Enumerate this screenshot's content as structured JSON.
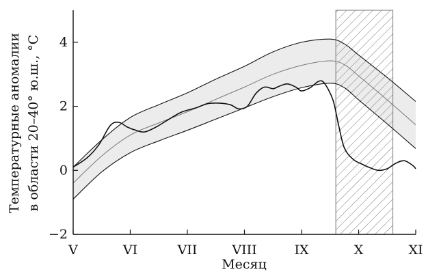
{
  "chart_data": {
    "type": "line",
    "xlabel": "Месяц",
    "ylabel_lines": [
      "Температурные аномалии",
      "в области 20–40° ю.ш., °С"
    ],
    "xlim": [
      0,
      6
    ],
    "ylim": [
      -2,
      5
    ],
    "x_ticks": [
      {
        "value": 0,
        "label": "V"
      },
      {
        "value": 1,
        "label": "VI"
      },
      {
        "value": 2,
        "label": "VII"
      },
      {
        "value": 3,
        "label": "VIII"
      },
      {
        "value": 4,
        "label": "IX"
      },
      {
        "value": 5,
        "label": "X"
      },
      {
        "value": 6,
        "label": "XI"
      }
    ],
    "y_ticks": [
      {
        "value": -2,
        "label": "−2"
      },
      {
        "value": 0,
        "label": "0"
      },
      {
        "value": 2,
        "label": "2"
      },
      {
        "value": 4,
        "label": "4"
      }
    ],
    "hatched_region": {
      "x_start": 4.6,
      "x_end": 5.6
    },
    "band": {
      "upper": [
        [
          0,
          0.1
        ],
        [
          0.5,
          0.95
        ],
        [
          1,
          1.65
        ],
        [
          1.5,
          2.05
        ],
        [
          2,
          2.42
        ],
        [
          2.5,
          2.85
        ],
        [
          3,
          3.25
        ],
        [
          3.5,
          3.7
        ],
        [
          4,
          4.0
        ],
        [
          4.5,
          4.1
        ],
        [
          4.75,
          3.95
        ],
        [
          5,
          3.6
        ],
        [
          5.5,
          2.9
        ],
        [
          6,
          2.15
        ]
      ],
      "lower": [
        [
          0,
          -0.9
        ],
        [
          0.5,
          -0.05
        ],
        [
          1,
          0.55
        ],
        [
          1.5,
          0.92
        ],
        [
          2,
          1.25
        ],
        [
          2.5,
          1.6
        ],
        [
          3,
          1.95
        ],
        [
          3.5,
          2.3
        ],
        [
          4,
          2.58
        ],
        [
          4.5,
          2.72
        ],
        [
          4.75,
          2.58
        ],
        [
          5,
          2.2
        ],
        [
          5.5,
          1.45
        ],
        [
          6,
          0.68
        ]
      ]
    },
    "series": [
      {
        "color": "#777777",
        "points": [
          [
            0,
            -0.4
          ],
          [
            0.5,
            0.45
          ],
          [
            1,
            1.1
          ],
          [
            1.5,
            1.48
          ],
          [
            2,
            1.83
          ],
          [
            2.5,
            2.22
          ],
          [
            3,
            2.6
          ],
          [
            3.5,
            3.0
          ],
          [
            4,
            3.28
          ],
          [
            4.5,
            3.42
          ],
          [
            4.75,
            3.3
          ],
          [
            5,
            2.95
          ],
          [
            5.5,
            2.2
          ],
          [
            6,
            1.42
          ]
        ]
      },
      {
        "color": "#111111",
        "points": [
          [
            0,
            0.1
          ],
          [
            0.25,
            0.4
          ],
          [
            0.45,
            0.8
          ],
          [
            0.65,
            1.4
          ],
          [
            0.8,
            1.5
          ],
          [
            0.95,
            1.35
          ],
          [
            1.1,
            1.25
          ],
          [
            1.25,
            1.2
          ],
          [
            1.45,
            1.35
          ],
          [
            1.7,
            1.62
          ],
          [
            1.9,
            1.82
          ],
          [
            2.15,
            1.95
          ],
          [
            2.35,
            2.08
          ],
          [
            2.55,
            2.1
          ],
          [
            2.75,
            2.05
          ],
          [
            2.9,
            1.92
          ],
          [
            3.05,
            2.0
          ],
          [
            3.2,
            2.4
          ],
          [
            3.35,
            2.6
          ],
          [
            3.5,
            2.55
          ],
          [
            3.6,
            2.62
          ],
          [
            3.75,
            2.7
          ],
          [
            3.9,
            2.6
          ],
          [
            4.0,
            2.48
          ],
          [
            4.15,
            2.58
          ],
          [
            4.3,
            2.78
          ],
          [
            4.4,
            2.72
          ],
          [
            4.55,
            2.2
          ],
          [
            4.65,
            1.4
          ],
          [
            4.75,
            0.7
          ],
          [
            4.9,
            0.35
          ],
          [
            5.05,
            0.2
          ],
          [
            5.2,
            0.08
          ],
          [
            5.35,
            0.0
          ],
          [
            5.5,
            0.05
          ],
          [
            5.65,
            0.22
          ],
          [
            5.8,
            0.3
          ],
          [
            5.95,
            0.15
          ],
          [
            6,
            0.05
          ]
        ]
      }
    ],
    "colors": {
      "band_fill": "#ececec",
      "axis": "#111111",
      "hatch": "#777777"
    }
  }
}
